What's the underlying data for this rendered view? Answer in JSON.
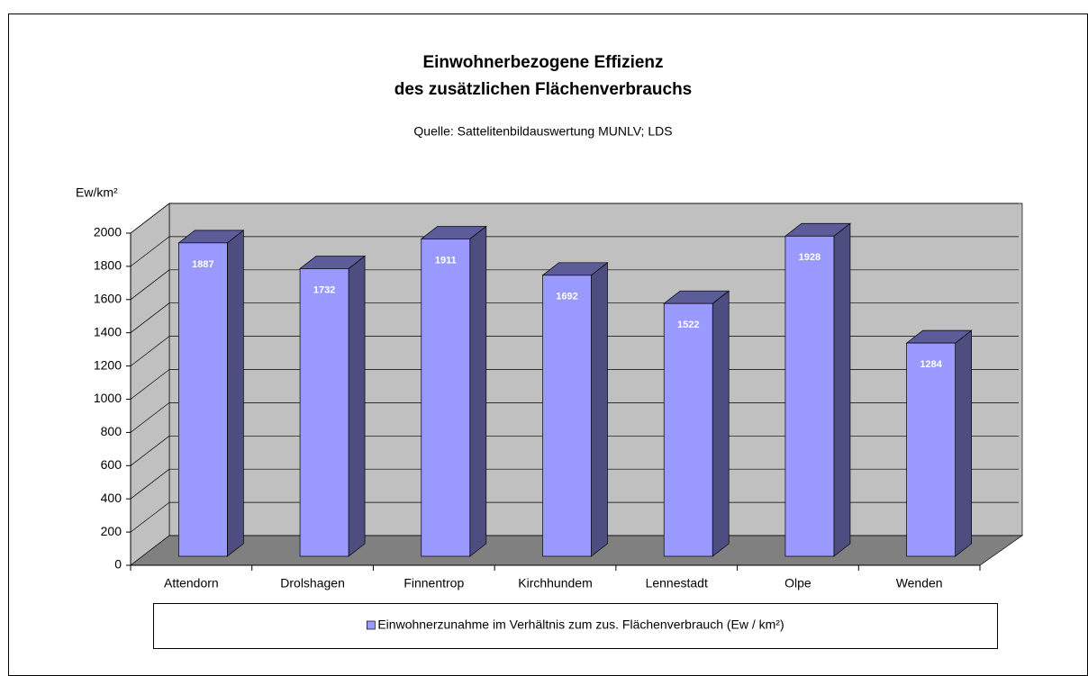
{
  "chart_data": {
    "type": "bar3d",
    "title": [
      "Einwohnerbezogene Effizienz",
      "des zusätzlichen Flächenverbrauchs"
    ],
    "subtitle": "Quelle: Sattelitenbildauswertung MUNLV; LDS",
    "y_label": "Ew/km²",
    "categories": [
      "Attendorn",
      "Drolshagen",
      "Finnentrop",
      "Kirchhundem",
      "Lennestadt",
      "Olpe",
      "Wenden"
    ],
    "series": [
      {
        "name": "Einwohnerzunahme im Verhältnis zum zus. Flächenverbrauch (Ew / km²)",
        "color": "#9999ff",
        "values": [
          1887,
          1732,
          1911,
          1692,
          1522,
          1928,
          1284
        ]
      }
    ],
    "ylim": [
      0,
      2000
    ],
    "yticks": [
      0,
      200,
      400,
      600,
      800,
      1000,
      1200,
      1400,
      1600,
      1800,
      2000
    ],
    "grid": true,
    "legend": "bottom"
  }
}
